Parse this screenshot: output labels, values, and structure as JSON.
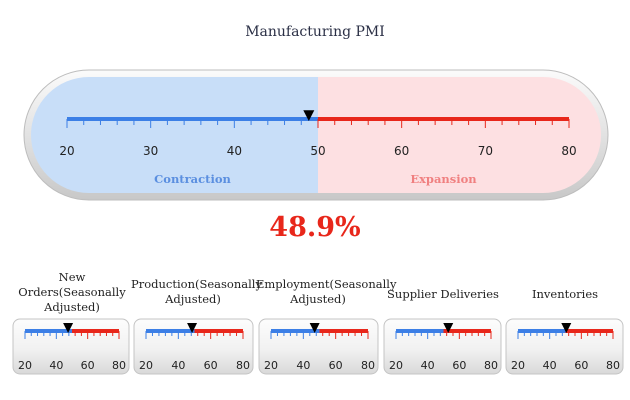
{
  "chart_data": [
    {
      "type": "gauge",
      "title": "Manufacturing PMI",
      "value": 48.9,
      "value_label": "48.9%",
      "range": [
        20,
        80
      ],
      "threshold": 50,
      "ticks": [
        "20",
        "30",
        "40",
        "50",
        "60",
        "70",
        "80"
      ],
      "zones": [
        {
          "label": "Contraction",
          "from": 20,
          "to": 50
        },
        {
          "label": "Expansion",
          "from": 50,
          "to": 80
        }
      ]
    },
    {
      "type": "gauge",
      "title": "New Orders(Seasonally Adjusted)",
      "value": 47.5,
      "range": [
        20,
        80
      ],
      "threshold": 50,
      "ticks": [
        "20",
        "40",
        "60",
        "80"
      ]
    },
    {
      "type": "gauge",
      "title": "Production(Seasonally Adjusted)",
      "value": 48.5,
      "range": [
        20,
        80
      ],
      "threshold": 50,
      "ticks": [
        "20",
        "40",
        "60",
        "80"
      ]
    },
    {
      "type": "gauge",
      "title": "Employment(Seasonally Adjusted)",
      "value": 47.0,
      "range": [
        20,
        80
      ],
      "threshold": 50,
      "ticks": [
        "20",
        "40",
        "60",
        "80"
      ]
    },
    {
      "type": "gauge",
      "title": "Supplier Deliveries",
      "value": 53.0,
      "range": [
        20,
        80
      ],
      "threshold": 50,
      "ticks": [
        "20",
        "40",
        "60",
        "80"
      ]
    },
    {
      "type": "gauge",
      "title": "Inventories",
      "value": 50.5,
      "range": [
        20,
        80
      ],
      "threshold": 50,
      "ticks": [
        "20",
        "40",
        "60",
        "80"
      ]
    }
  ],
  "colors": {
    "contraction": "#3c7fe6",
    "expansion": "#e8271b",
    "contraction_zone": "#c8def8",
    "expansion_zone": "#fde0e2",
    "contraction_label": "#5b8fe0",
    "expansion_label": "#f08080",
    "value_text": "#e8271b",
    "pointer": "#000000"
  }
}
